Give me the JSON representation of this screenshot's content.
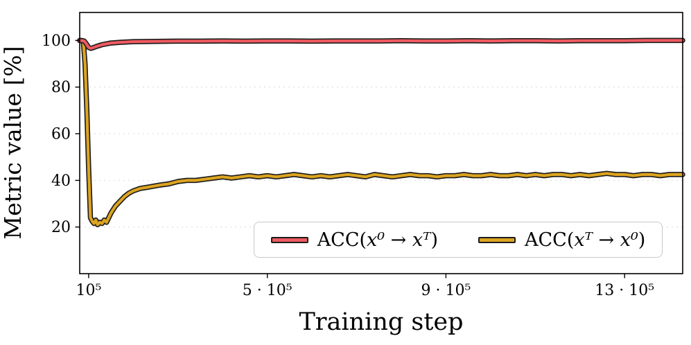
{
  "axis": {
    "xlabel": "Training step",
    "ylabel": "Metric value [%]"
  },
  "xticks": {
    "labels": [
      "10⁵",
      "5 · 10⁵",
      "9 · 10⁵",
      "13 · 10⁵"
    ],
    "values": [
      1,
      5,
      9,
      13
    ]
  },
  "yticks": {
    "labels": [
      "20",
      "40",
      "60",
      "80",
      "100"
    ],
    "values": [
      20,
      40,
      60,
      80,
      100
    ]
  },
  "legend": {
    "entries": [
      {
        "pre": "ACC(",
        "math": "x⁰ → xᵀ",
        "post": ")"
      },
      {
        "pre": "ACC(",
        "math": "xᵀ → x⁰",
        "post": ")"
      }
    ]
  },
  "chart_data": {
    "type": "line",
    "title": "",
    "xlabel": "Training step",
    "ylabel": "Metric value [%]",
    "x_unit": 100000,
    "xlim": [
      0.8,
      14.3
    ],
    "ylim": [
      0,
      112
    ],
    "grid": "horizontal dashed at y ticks",
    "legend_position": "lower center-right inside axes",
    "series": [
      {
        "name": "ACC(x0 → xT)",
        "color": "#ee5a60",
        "outline": "#1c1c1c",
        "x": [
          0.8,
          0.9,
          0.95,
          1.0,
          1.05,
          1.1,
          1.2,
          1.3,
          1.5,
          1.7,
          2.0,
          2.5,
          3.0,
          3.5,
          4.0,
          4.5,
          5.0,
          5.5,
          6.0,
          6.5,
          7.0,
          7.5,
          8.0,
          8.5,
          9.0,
          9.5,
          10.0,
          10.5,
          11.0,
          11.5,
          12.0,
          12.5,
          13.0,
          13.5,
          14.0,
          14.3
        ],
        "y": [
          100,
          99.8,
          98.5,
          97,
          96.6,
          96.9,
          97.6,
          98.2,
          98.9,
          99.2,
          99.5,
          99.6,
          99.7,
          99.7,
          99.8,
          99.7,
          99.8,
          99.8,
          99.7,
          99.8,
          99.8,
          99.8,
          99.9,
          99.8,
          99.8,
          99.9,
          99.8,
          99.9,
          99.9,
          99.8,
          99.9,
          99.9,
          99.9,
          100,
          100,
          100
        ]
      },
      {
        "name": "ACC(xT → x0)",
        "color": "#dca421",
        "outline": "#1c1c1c",
        "x": [
          0.8,
          0.84,
          0.88,
          0.92,
          0.96,
          1.0,
          1.04,
          1.08,
          1.12,
          1.16,
          1.2,
          1.25,
          1.3,
          1.35,
          1.4,
          1.5,
          1.6,
          1.7,
          1.8,
          1.9,
          2.0,
          2.15,
          2.3,
          2.45,
          2.6,
          2.8,
          3.0,
          3.2,
          3.4,
          3.6,
          3.8,
          4.0,
          4.2,
          4.4,
          4.6,
          4.8,
          5.0,
          5.2,
          5.4,
          5.6,
          5.8,
          6.0,
          6.2,
          6.4,
          6.6,
          6.8,
          7.0,
          7.2,
          7.4,
          7.6,
          7.8,
          8.0,
          8.2,
          8.4,
          8.6,
          8.8,
          9.0,
          9.2,
          9.4,
          9.6,
          9.8,
          10.0,
          10.2,
          10.4,
          10.6,
          10.8,
          11.0,
          11.2,
          11.4,
          11.6,
          11.8,
          12.0,
          12.2,
          12.4,
          12.6,
          12.8,
          13.0,
          13.2,
          13.4,
          13.6,
          13.8,
          14.0,
          14.15,
          14.3
        ],
        "y": [
          100,
          100,
          99.5,
          90,
          70,
          45,
          24,
          22.5,
          21.5,
          23,
          21,
          22,
          21.5,
          23,
          22,
          26,
          29,
          31,
          33,
          34.5,
          35.5,
          36.5,
          37,
          37.5,
          38,
          38.5,
          39.5,
          40,
          40,
          40.5,
          41,
          41.5,
          41,
          41.5,
          42,
          41.5,
          42,
          41.5,
          42,
          42.5,
          42,
          41.5,
          42,
          41.5,
          42,
          42.5,
          42,
          41.5,
          42.5,
          42,
          41.5,
          42,
          42.5,
          42,
          42,
          41.5,
          42,
          42,
          42.5,
          42,
          42,
          42.5,
          42,
          42,
          42.5,
          42,
          42.5,
          42,
          42.5,
          42.5,
          42,
          42.5,
          42,
          42.5,
          43,
          42.5,
          42.5,
          42,
          42.5,
          42.5,
          42,
          42.5,
          42.5,
          42.5
        ]
      }
    ]
  }
}
